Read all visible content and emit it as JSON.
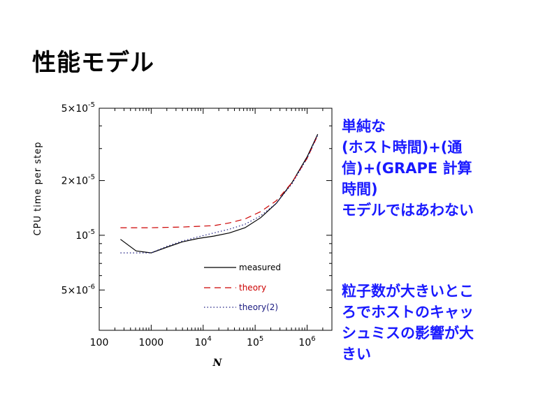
{
  "slide": {
    "title": "性能モデル",
    "notes": [
      "単純な\n(ホスト時間)+(通\n信)+(GRAPE 計算\n時間)\nモデルではあわない",
      "粒子数が大きいとこ\nろでホストのキャッ\nシュミスの影響が大\nきい"
    ]
  },
  "chart_data": {
    "type": "line",
    "xscale": "log",
    "yscale": "log",
    "xlim": [
      100,
      3000000
    ],
    "ylim": [
      3e-06,
      5e-05
    ],
    "xlabel": "N",
    "ylabel": "CPU time per step",
    "x_ticks": [
      {
        "value": 100,
        "label": "100"
      },
      {
        "value": 1000,
        "label": "1000"
      },
      {
        "value": 10000,
        "label": "10^4"
      },
      {
        "value": 100000,
        "label": "10^5"
      },
      {
        "value": 1000000,
        "label": "10^6"
      }
    ],
    "y_ticks": [
      {
        "value": 5e-06,
        "label": "5×10^-6"
      },
      {
        "value": 1e-05,
        "label": "10^-5"
      },
      {
        "value": 2e-05,
        "label": "2×10^-5"
      },
      {
        "value": 5e-05,
        "label": "5×10^-5"
      }
    ],
    "legend": "inside lower-right",
    "series": [
      {
        "name": "measured",
        "color": "#000000",
        "dash": "solid",
        "x": [
          256,
          512,
          1000,
          2000,
          4000,
          8000,
          16000,
          32000,
          64000,
          128000,
          256000,
          512000,
          1000000,
          1600000
        ],
        "y": [
          9.5e-06,
          8.2e-06,
          8e-06,
          8.6e-06,
          9.2e-06,
          9.6e-06,
          9.9e-06,
          1.03e-05,
          1.1e-05,
          1.25e-05,
          1.5e-05,
          1.95e-05,
          2.7e-05,
          3.6e-05
        ]
      },
      {
        "name": "theory",
        "color": "#cc0000",
        "dash": "dashed",
        "x": [
          256,
          1000,
          4000,
          16000,
          32000,
          64000,
          128000,
          256000,
          512000,
          1000000,
          1600000
        ],
        "y": [
          1.1e-05,
          1.1e-05,
          1.11e-05,
          1.13e-05,
          1.17e-05,
          1.23e-05,
          1.35e-05,
          1.55e-05,
          1.95e-05,
          2.65e-05,
          3.55e-05
        ]
      },
      {
        "name": "theory(2)",
        "color": "#1a1a80",
        "dash": "dotted",
        "x": [
          256,
          1000,
          2000,
          4000,
          8000,
          16000,
          32000,
          64000,
          128000,
          256000,
          512000,
          1000000,
          1600000
        ],
        "y": [
          8e-06,
          8e-06,
          8.7e-06,
          9.3e-06,
          9.8e-06,
          1.03e-05,
          1.08e-05,
          1.15e-05,
          1.28e-05,
          1.5e-05,
          1.92e-05,
          2.65e-05,
          3.55e-05
        ]
      }
    ]
  }
}
